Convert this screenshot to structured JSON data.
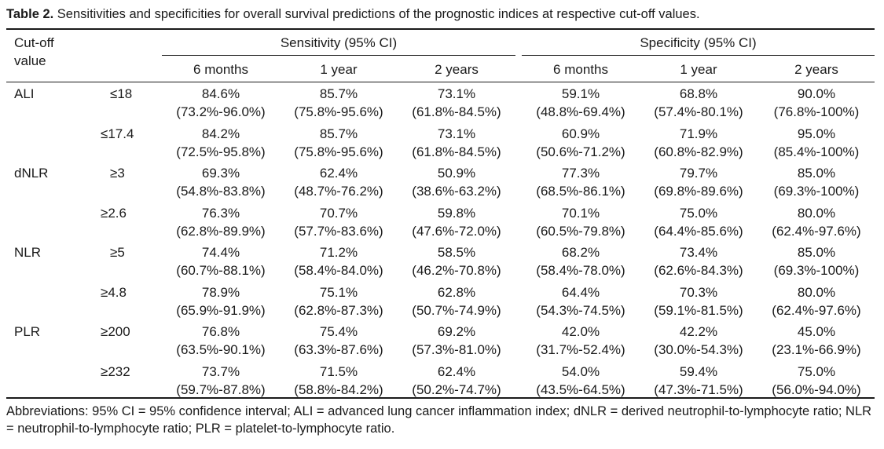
{
  "caption": {
    "label": "Table 2.",
    "text": " Sensitivities and specificities for overall survival predictions of the prognostic indices at respective cut-off values."
  },
  "header": {
    "cutoff": "Cut-off value",
    "sensitivity": "Sensitivity (95% CI)",
    "specificity": "Specificity (95% CI)",
    "periods": [
      "6 months",
      "1 year",
      "2 years",
      "6 months",
      "1 year",
      "2 years"
    ]
  },
  "rows": [
    {
      "index": "ALI",
      "cutoff": "≤18",
      "cells": [
        [
          "84.6%",
          "(73.2%-96.0%)"
        ],
        [
          "85.7%",
          "(75.8%-95.6%)"
        ],
        [
          "73.1%",
          "(61.8%-84.5%)"
        ],
        [
          "59.1%",
          "(48.8%-69.4%)"
        ],
        [
          "68.8%",
          "(57.4%-80.1%)"
        ],
        [
          "90.0%",
          "(76.8%-100%)"
        ]
      ]
    },
    {
      "index": "",
      "cutoff": "≤17.4",
      "cells": [
        [
          "84.2%",
          "(72.5%-95.8%)"
        ],
        [
          "85.7%",
          "(75.8%-95.6%)"
        ],
        [
          "73.1%",
          "(61.8%-84.5%)"
        ],
        [
          "60.9%",
          "(50.6%-71.2%)"
        ],
        [
          "71.9%",
          "(60.8%-82.9%)"
        ],
        [
          "95.0%",
          "(85.4%-100%)"
        ]
      ]
    },
    {
      "index": "dNLR",
      "cutoff": "≥3",
      "cells": [
        [
          "69.3%",
          "(54.8%-83.8%)"
        ],
        [
          "62.4%",
          "(48.7%-76.2%)"
        ],
        [
          "50.9%",
          "(38.6%-63.2%)"
        ],
        [
          "77.3%",
          "(68.5%-86.1%)"
        ],
        [
          "79.7%",
          "(69.8%-89.6%)"
        ],
        [
          "85.0%",
          "(69.3%-100%)"
        ]
      ]
    },
    {
      "index": "",
      "cutoff": "≥2.6",
      "cells": [
        [
          "76.3%",
          "(62.8%-89.9%)"
        ],
        [
          "70.7%",
          "(57.7%-83.6%)"
        ],
        [
          "59.8%",
          "(47.6%-72.0%)"
        ],
        [
          "70.1%",
          "(60.5%-79.8%)"
        ],
        [
          "75.0%",
          "(64.4%-85.6%)"
        ],
        [
          "80.0%",
          "(62.4%-97.6%)"
        ]
      ]
    },
    {
      "index": "NLR",
      "cutoff": "≥5",
      "cells": [
        [
          "74.4%",
          "(60.7%-88.1%)"
        ],
        [
          "71.2%",
          "(58.4%-84.0%)"
        ],
        [
          "58.5%",
          "(46.2%-70.8%)"
        ],
        [
          "68.2%",
          "(58.4%-78.0%)"
        ],
        [
          "73.4%",
          "(62.6%-84.3%)"
        ],
        [
          "85.0%",
          "(69.3%-100%)"
        ]
      ]
    },
    {
      "index": "",
      "cutoff": "≥4.8",
      "cells": [
        [
          "78.9%",
          "(65.9%-91.9%)"
        ],
        [
          "75.1%",
          "(62.8%-87.3%)"
        ],
        [
          "62.8%",
          "(50.7%-74.9%)"
        ],
        [
          "64.4%",
          "(54.3%-74.5%)"
        ],
        [
          "70.3%",
          "(59.1%-81.5%)"
        ],
        [
          "80.0%",
          "(62.4%-97.6%)"
        ]
      ]
    },
    {
      "index": "PLR",
      "cutoff": "≥200",
      "cells": [
        [
          "76.8%",
          "(63.5%-90.1%)"
        ],
        [
          "75.4%",
          "(63.3%-87.6%)"
        ],
        [
          "69.2%",
          "(57.3%-81.0%)"
        ],
        [
          "42.0%",
          "(31.7%-52.4%)"
        ],
        [
          "42.2%",
          "(30.0%-54.3%)"
        ],
        [
          "45.0%",
          "(23.1%-66.9%)"
        ]
      ]
    },
    {
      "index": "",
      "cutoff": "≥232",
      "cells": [
        [
          "73.7%",
          "(59.7%-87.8%)"
        ],
        [
          "71.5%",
          "(58.8%-84.2%)"
        ],
        [
          "62.4%",
          "(50.2%-74.7%)"
        ],
        [
          "54.0%",
          "(43.5%-64.5%)"
        ],
        [
          "59.4%",
          "(47.3%-71.5%)"
        ],
        [
          "75.0%",
          "(56.0%-94.0%)"
        ]
      ]
    }
  ],
  "footnote": "Abbreviations: 95% CI = 95% confidence interval; ALI = advanced lung cancer inflammation index; dNLR = derived neutrophil-to-lymphocyte ratio; NLR = neutrophil-to-lymphocyte ratio; PLR = platelet-to-lymphocyte ratio."
}
